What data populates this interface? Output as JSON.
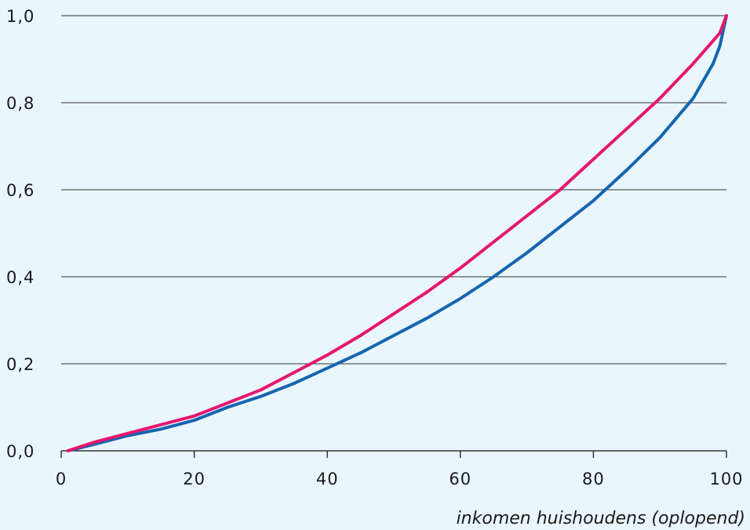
{
  "chart_data": {
    "type": "line",
    "title": "",
    "xlabel": "inkomen huishoudens (oplopend)",
    "ylabel": "",
    "xlim": [
      0,
      100
    ],
    "ylim": [
      0,
      1.0
    ],
    "x_ticks": [
      0,
      20,
      40,
      60,
      80,
      100
    ],
    "x_tick_labels": [
      "0",
      "20",
      "40",
      "60",
      "80",
      "100"
    ],
    "y_ticks": [
      0,
      0.2,
      0.4,
      0.6,
      0.8,
      1.0
    ],
    "y_tick_labels": [
      "0,0",
      "0,2",
      "0,4",
      "0,6",
      "0,8",
      "1,0"
    ],
    "grid": "horizontal",
    "legend": "none",
    "series": [
      {
        "color": "#e5176f",
        "x": [
          1,
          5,
          10,
          15,
          20,
          25,
          30,
          35,
          40,
          45,
          50,
          55,
          60,
          65,
          70,
          75,
          80,
          85,
          90,
          95,
          99,
          100
        ],
        "y": [
          0.0,
          0.02,
          0.04,
          0.06,
          0.08,
          0.11,
          0.14,
          0.18,
          0.22,
          0.265,
          0.315,
          0.365,
          0.42,
          0.48,
          0.54,
          0.6,
          0.67,
          0.74,
          0.81,
          0.89,
          0.96,
          1.0
        ]
      },
      {
        "color": "#1565b0",
        "x": [
          1,
          5,
          10,
          15,
          20,
          25,
          30,
          35,
          40,
          45,
          50,
          55,
          60,
          65,
          70,
          75,
          80,
          85,
          90,
          95,
          98,
          99,
          100
        ],
        "y": [
          0.0,
          0.015,
          0.035,
          0.05,
          0.07,
          0.1,
          0.125,
          0.155,
          0.19,
          0.225,
          0.265,
          0.305,
          0.35,
          0.4,
          0.455,
          0.515,
          0.575,
          0.645,
          0.72,
          0.81,
          0.89,
          0.93,
          1.0
        ]
      }
    ]
  }
}
